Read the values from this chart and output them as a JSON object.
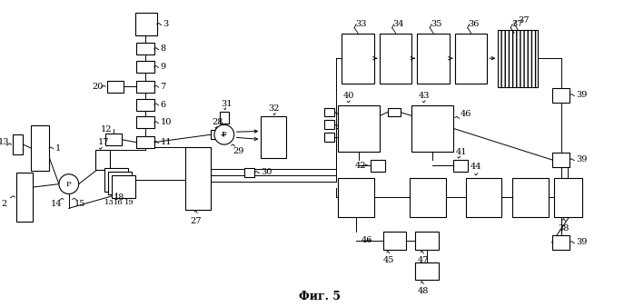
{
  "title": "Фиг. 5",
  "bg_color": "#ffffff",
  "line_color": "#000000",
  "box_color": "#ffffff",
  "box_edge": "#000000",
  "title_fontsize": 9,
  "label_fontsize": 7
}
